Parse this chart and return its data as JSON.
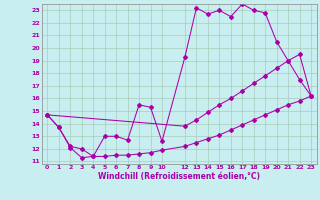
{
  "background_color": "#c8eef0",
  "grid_color": "#aaccbb",
  "line_color": "#aa00aa",
  "xlim_min": -0.5,
  "xlim_max": 23.5,
  "ylim_min": 10.8,
  "ylim_max": 23.5,
  "xticks": [
    0,
    1,
    2,
    3,
    4,
    5,
    6,
    7,
    8,
    9,
    10,
    12,
    13,
    14,
    15,
    16,
    17,
    18,
    19,
    20,
    21,
    22,
    23
  ],
  "yticks": [
    11,
    12,
    13,
    14,
    15,
    16,
    17,
    18,
    19,
    20,
    21,
    22,
    23
  ],
  "xlabel": "Windchill (Refroidissement éolien,°C)",
  "line1_x": [
    0,
    1,
    2,
    3,
    4,
    5,
    6,
    7,
    8,
    9,
    10,
    12,
    13,
    14,
    15,
    16,
    17,
    18,
    19,
    20,
    21,
    22,
    23
  ],
  "line1_y": [
    14.7,
    13.7,
    12.1,
    11.3,
    11.4,
    13.0,
    13.0,
    12.7,
    15.5,
    15.3,
    12.6,
    19.3,
    23.2,
    22.7,
    23.0,
    22.5,
    23.5,
    23.0,
    22.8,
    20.5,
    19.0,
    17.5,
    16.2
  ],
  "line2_x": [
    0,
    1,
    2,
    3,
    4,
    5,
    6,
    7,
    8,
    9,
    10,
    12,
    13,
    14,
    15,
    16,
    17,
    18,
    19,
    20,
    21,
    22,
    23
  ],
  "line2_y": [
    14.7,
    13.7,
    12.2,
    12.0,
    11.4,
    11.4,
    11.5,
    11.5,
    11.6,
    11.7,
    11.9,
    12.2,
    12.5,
    12.8,
    13.1,
    13.5,
    13.9,
    14.3,
    14.7,
    15.1,
    15.5,
    15.8,
    16.2
  ],
  "line3_x": [
    0,
    12,
    13,
    14,
    15,
    16,
    17,
    18,
    19,
    20,
    21,
    22,
    23
  ],
  "line3_y": [
    14.7,
    13.8,
    14.3,
    14.9,
    15.5,
    16.0,
    16.6,
    17.2,
    17.8,
    18.4,
    19.0,
    19.5,
    16.2
  ]
}
